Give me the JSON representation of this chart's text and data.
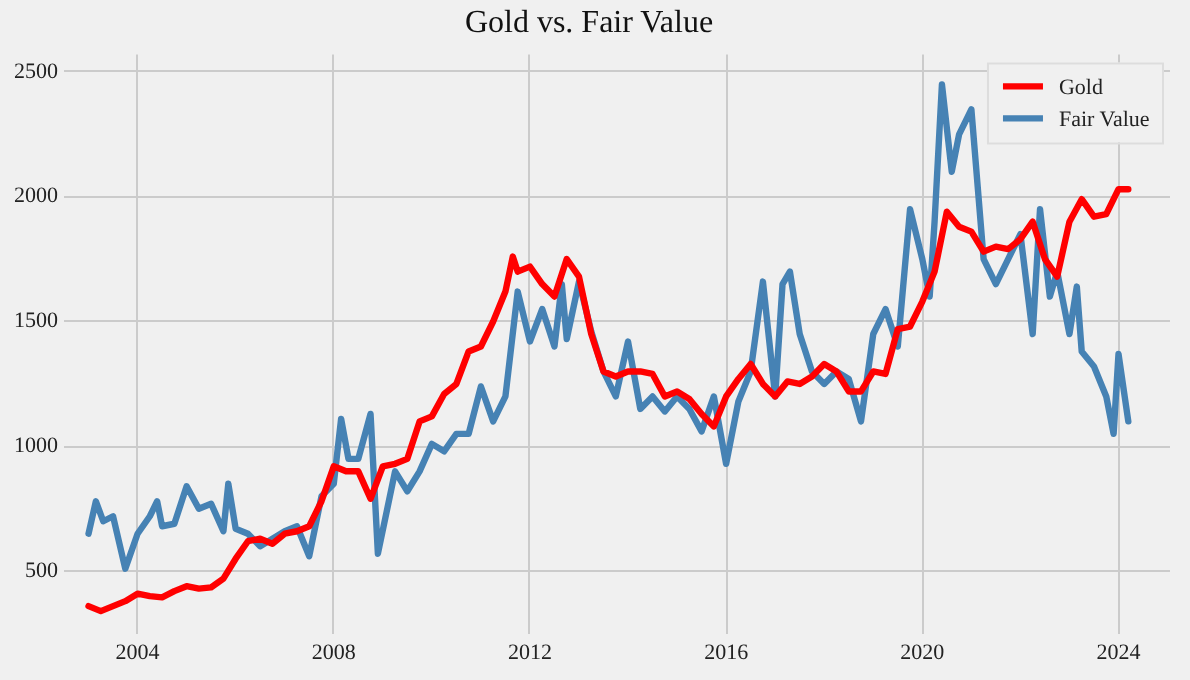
{
  "chart_data": {
    "type": "line",
    "title": "Gold vs. Fair Value",
    "series": [
      {
        "name": "Gold",
        "color": "#ff0000",
        "x": [
          2003.0,
          2003.25,
          2003.5,
          2003.75,
          2004.0,
          2004.25,
          2004.5,
          2004.75,
          2005.0,
          2005.25,
          2005.5,
          2005.75,
          2006.0,
          2006.25,
          2006.5,
          2006.75,
          2007.0,
          2007.25,
          2007.5,
          2007.75,
          2008.0,
          2008.25,
          2008.5,
          2008.75,
          2009.0,
          2009.25,
          2009.5,
          2009.75,
          2010.0,
          2010.25,
          2010.5,
          2010.75,
          2011.0,
          2011.25,
          2011.5,
          2011.65,
          2011.75,
          2012.0,
          2012.25,
          2012.5,
          2012.75,
          2013.0,
          2013.25,
          2013.5,
          2013.75,
          2014.0,
          2014.25,
          2014.5,
          2014.75,
          2015.0,
          2015.25,
          2015.5,
          2015.75,
          2016.0,
          2016.25,
          2016.5,
          2016.75,
          2017.0,
          2017.25,
          2017.5,
          2017.75,
          2018.0,
          2018.25,
          2018.5,
          2018.75,
          2019.0,
          2019.25,
          2019.5,
          2019.75,
          2020.0,
          2020.25,
          2020.5,
          2020.75,
          2021.0,
          2021.25,
          2021.5,
          2021.75,
          2022.0,
          2022.25,
          2022.5,
          2022.75,
          2023.0,
          2023.25,
          2023.5,
          2023.75,
          2024.0,
          2024.2
        ],
        "values": [
          360,
          340,
          360,
          380,
          410,
          400,
          395,
          420,
          440,
          430,
          435,
          470,
          550,
          620,
          630,
          610,
          650,
          660,
          680,
          780,
          920,
          900,
          900,
          790,
          920,
          930,
          950,
          1100,
          1120,
          1210,
          1250,
          1380,
          1400,
          1500,
          1620,
          1760,
          1700,
          1720,
          1650,
          1600,
          1750,
          1680,
          1450,
          1300,
          1280,
          1300,
          1300,
          1290,
          1200,
          1220,
          1190,
          1130,
          1080,
          1200,
          1270,
          1330,
          1250,
          1200,
          1260,
          1250,
          1280,
          1330,
          1300,
          1220,
          1220,
          1300,
          1290,
          1470,
          1480,
          1580,
          1700,
          1940,
          1880,
          1860,
          1780,
          1800,
          1790,
          1830,
          1900,
          1750,
          1680,
          1900,
          1990,
          1920,
          1930,
          2030,
          2030
        ]
      },
      {
        "name": "Fair Value",
        "color": "#4682b4",
        "x": [
          2003.0,
          2003.15,
          2003.3,
          2003.5,
          2003.75,
          2004.0,
          2004.25,
          2004.4,
          2004.5,
          2004.75,
          2005.0,
          2005.25,
          2005.5,
          2005.75,
          2005.85,
          2006.0,
          2006.25,
          2006.5,
          2006.75,
          2007.0,
          2007.25,
          2007.5,
          2007.75,
          2008.0,
          2008.15,
          2008.3,
          2008.5,
          2008.75,
          2008.9,
          2009.25,
          2009.5,
          2009.75,
          2010.0,
          2010.25,
          2010.5,
          2010.75,
          2011.0,
          2011.25,
          2011.5,
          2011.75,
          2012.0,
          2012.25,
          2012.5,
          2012.65,
          2012.75,
          2013.0,
          2013.25,
          2013.5,
          2013.75,
          2014.0,
          2014.25,
          2014.5,
          2014.75,
          2015.0,
          2015.25,
          2015.5,
          2015.75,
          2016.0,
          2016.25,
          2016.5,
          2016.75,
          2017.0,
          2017.15,
          2017.3,
          2017.5,
          2017.75,
          2018.0,
          2018.25,
          2018.5,
          2018.75,
          2019.0,
          2019.25,
          2019.5,
          2019.75,
          2020.0,
          2020.15,
          2020.25,
          2020.4,
          2020.6,
          2020.75,
          2021.0,
          2021.25,
          2021.5,
          2021.75,
          2022.0,
          2022.25,
          2022.4,
          2022.6,
          2022.75,
          2023.0,
          2023.15,
          2023.25,
          2023.5,
          2023.75,
          2023.9,
          2024.0,
          2024.2
        ],
        "values": [
          650,
          780,
          700,
          720,
          510,
          650,
          720,
          780,
          680,
          690,
          840,
          750,
          770,
          660,
          850,
          670,
          650,
          600,
          630,
          660,
          680,
          560,
          800,
          850,
          1110,
          950,
          950,
          1130,
          570,
          900,
          820,
          900,
          1010,
          980,
          1050,
          1050,
          1240,
          1100,
          1200,
          1620,
          1420,
          1550,
          1400,
          1650,
          1430,
          1660,
          1460,
          1300,
          1200,
          1420,
          1150,
          1200,
          1140,
          1200,
          1150,
          1060,
          1200,
          930,
          1180,
          1300,
          1660,
          1200,
          1650,
          1700,
          1450,
          1300,
          1250,
          1300,
          1270,
          1100,
          1450,
          1550,
          1400,
          1950,
          1750,
          1600,
          1900,
          2450,
          2100,
          2250,
          2350,
          1750,
          1650,
          1750,
          1850,
          1450,
          1950,
          1600,
          1700,
          1450,
          1640,
          1380,
          1320,
          1200,
          1050,
          1370,
          1100
        ]
      }
    ],
    "xlim": [
      2002.5,
      2025.05
    ],
    "xticks": [
      2004,
      2008,
      2012,
      2016,
      2020,
      2024
    ],
    "ylim": [
      250,
      2570
    ],
    "yticks": [
      500,
      1000,
      1500,
      2000,
      2500
    ],
    "grid": true,
    "legend": "top right",
    "marker": "none",
    "line_style": "solid"
  }
}
